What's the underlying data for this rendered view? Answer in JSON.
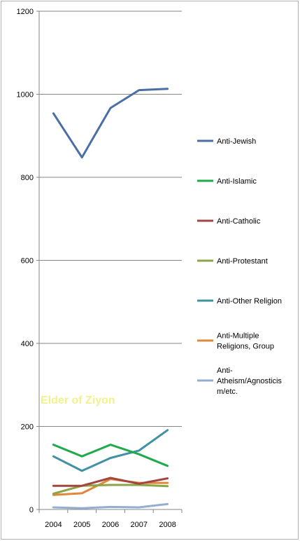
{
  "chart_data": {
    "type": "line",
    "x": [
      "2004",
      "2005",
      "2006",
      "2007",
      "2008"
    ],
    "ylim": [
      0,
      1200
    ],
    "yticks": [
      "0",
      "200",
      "400",
      "600",
      "800",
      "1000",
      "1200"
    ],
    "grid": "horizontal",
    "legend_position": "right",
    "watermark": "Elder of Ziyon",
    "watermark_color": "#f2f28c",
    "series": [
      {
        "name": "Anti-Jewish",
        "name_lines": [
          "Anti-Jewish"
        ],
        "color": "#4a6fa5",
        "values": [
          954,
          848,
          967,
          1010,
          1013
        ]
      },
      {
        "name": "Anti-Islamic",
        "name_lines": [
          "Anti-Islamic"
        ],
        "color": "#1faa4b",
        "values": [
          156,
          128,
          156,
          133,
          105
        ]
      },
      {
        "name": "Anti-Catholic",
        "name_lines": [
          "Anti-Catholic"
        ],
        "color": "#a54540",
        "values": [
          57,
          57,
          76,
          62,
          75
        ]
      },
      {
        "name": "Anti-Protestant",
        "name_lines": [
          "Anti-Protestant"
        ],
        "color": "#8aa646",
        "values": [
          38,
          57,
          59,
          59,
          56
        ]
      },
      {
        "name": "Anti-Other Religion",
        "name_lines": [
          "Anti-Other Religion"
        ],
        "color": "#3f91a3",
        "values": [
          128,
          93,
          124,
          142,
          191
        ]
      },
      {
        "name": "Anti-Multiple Religions, Group",
        "name_lines": [
          "Anti-Multiple",
          "Religions, Group"
        ],
        "color": "#e0883a",
        "values": [
          35,
          39,
          73,
          64,
          64
        ]
      },
      {
        "name": "Anti-Atheism/Agnosticism/etc.",
        "name_lines": [
          "Anti-",
          "Atheism/Agnosticis",
          "m/etc."
        ],
        "color": "#94aed0",
        "values": [
          5,
          3,
          6,
          5,
          13
        ]
      }
    ]
  }
}
